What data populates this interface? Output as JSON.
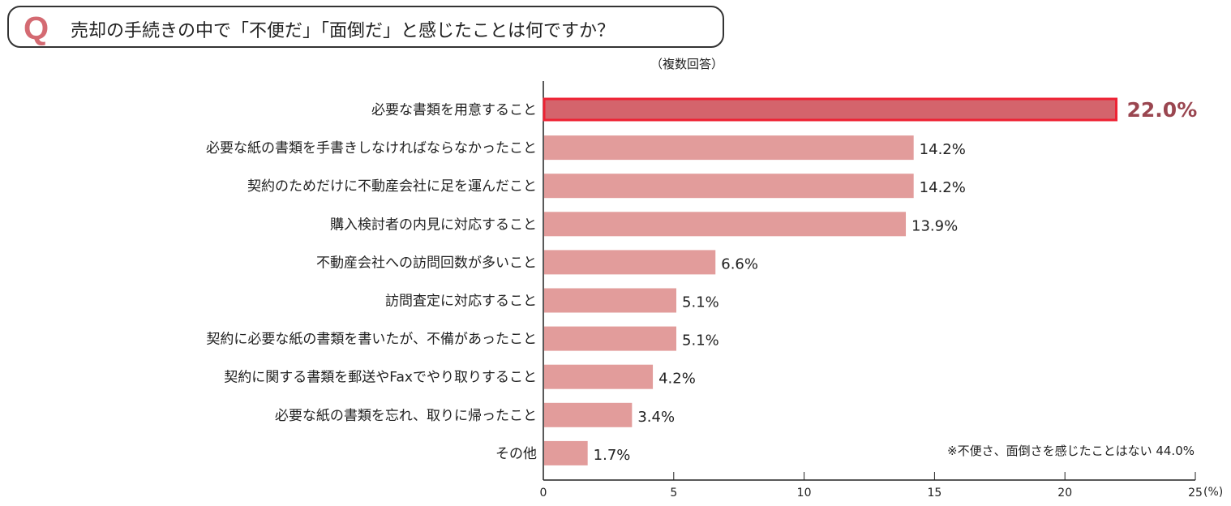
{
  "question": {
    "mark": "Q",
    "text": "売却の手続きの中で「不便だ」「面倒だ」と感じたことは何ですか？"
  },
  "note": "（複数回答）",
  "chart_data": {
    "type": "bar",
    "orientation": "horizontal",
    "categories": [
      "必要な書類を用意すること",
      "必要な紙の書類を手書きしなければならなかったこと",
      "契約のためだけに不動産会社に足を運んだこと",
      "購入検討者の内見に対応すること",
      "不動産会社への訪問回数が多いこと",
      "訪問査定に対応すること",
      "契約に必要な紙の書類を書いたが、不備があったこと",
      "契約に関する書類を郵送やFaxでやり取りすること",
      "必要な紙の書類を忘れ、取りに帰ったこと",
      "その他"
    ],
    "values": [
      22.0,
      14.2,
      14.2,
      13.9,
      6.6,
      5.1,
      5.1,
      4.2,
      3.4,
      1.7
    ],
    "labels": [
      "22.0%",
      "14.2%",
      "14.2%",
      "13.9%",
      "6.6%",
      "5.1%",
      "5.1%",
      "4.2%",
      "3.4%",
      "1.7%"
    ],
    "highlight_index": 0,
    "xlim": [
      0,
      25
    ],
    "xticks": [
      "0",
      "5",
      "10",
      "15",
      "20",
      "25"
    ],
    "xunit": "(%)",
    "grid": false,
    "footnote": "※不便さ、面倒さを感じたことはない 44.0%",
    "colors": {
      "bar": "#e29c9b",
      "highlight": "#d4646c",
      "highlight_border": "#ee2233",
      "highlight_label": "#9a4650"
    }
  }
}
